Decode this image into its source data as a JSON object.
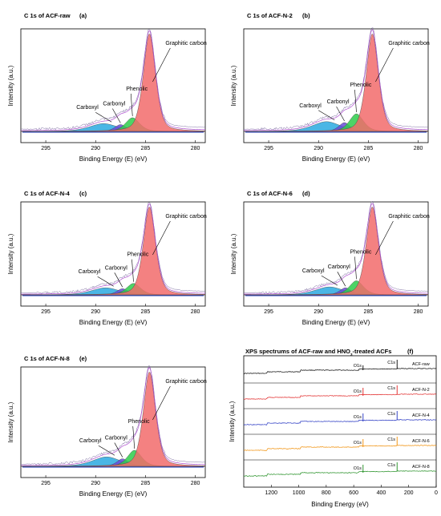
{
  "chart_data": [
    {
      "type": "area",
      "panel_id": "a",
      "title": "C 1s of ACF-raw",
      "tag": "(a)",
      "xlabel": "Binding Energy (E) (eV)",
      "ylabel": "Intensity (a.u.)",
      "xlim": [
        297.5,
        279
      ],
      "xticks": [
        "295",
        "290",
        "285",
        "280"
      ],
      "peaks": [
        {
          "name": "Graphitic carbon",
          "center": 284.6,
          "height": 1.0,
          "width": 0.65,
          "color": "#f26b6b"
        },
        {
          "name": "Phenolic",
          "center": 286.3,
          "height": 0.14,
          "width": 0.75,
          "color": "#2ecc4b"
        },
        {
          "name": "Carbonyl",
          "center": 287.5,
          "height": 0.07,
          "width": 0.6,
          "color": "#6a4bd8"
        },
        {
          "name": "Carboxyl",
          "center": 289.2,
          "height": 0.08,
          "width": 1.5,
          "color": "#2aa9e0"
        }
      ]
    },
    {
      "type": "area",
      "panel_id": "b",
      "title": "C 1s of ACF-N-2",
      "tag": "(b)",
      "xlabel": "Binding Energy (E) (eV)",
      "ylabel": "Intensity (a.u.)",
      "xlim": [
        297.5,
        279
      ],
      "xticks": [
        "295",
        "290",
        "285",
        "280"
      ],
      "peaks": [
        {
          "name": "Graphitic carbon",
          "center": 284.6,
          "height": 1.0,
          "width": 0.65,
          "color": "#f26b6b"
        },
        {
          "name": "Phenolic",
          "center": 286.2,
          "height": 0.18,
          "width": 0.75,
          "color": "#2ecc4b"
        },
        {
          "name": "Carbonyl",
          "center": 287.4,
          "height": 0.09,
          "width": 0.6,
          "color": "#6a4bd8"
        },
        {
          "name": "Carboxyl",
          "center": 289.2,
          "height": 0.1,
          "width": 1.5,
          "color": "#2aa9e0"
        }
      ]
    },
    {
      "type": "area",
      "panel_id": "c",
      "title": "C 1s of ACF-N-4",
      "tag": "(c)",
      "xlabel": "Binding Energy (E) (eV)",
      "ylabel": "Intensity (a.u.)",
      "xlim": [
        297.5,
        279
      ],
      "xticks": [
        "295",
        "290",
        "285",
        "280"
      ],
      "peaks": [
        {
          "name": "Graphitic carbon",
          "center": 284.6,
          "height": 1.0,
          "width": 0.65,
          "color": "#f26b6b"
        },
        {
          "name": "Phenolic",
          "center": 286.2,
          "height": 0.13,
          "width": 0.75,
          "color": "#2ecc4b"
        },
        {
          "name": "Carbonyl",
          "center": 287.3,
          "height": 0.07,
          "width": 0.6,
          "color": "#6a4bd8"
        },
        {
          "name": "Carboxyl",
          "center": 289.0,
          "height": 0.08,
          "width": 1.5,
          "color": "#2aa9e0"
        }
      ]
    },
    {
      "type": "area",
      "panel_id": "d",
      "title": "C 1s of ACF-N-6",
      "tag": "(d)",
      "xlabel": "Binding Energy (E) (eV)",
      "ylabel": "Intensity (a.u.)",
      "xlim": [
        297.5,
        279
      ],
      "xticks": [
        "295",
        "290",
        "285",
        "280"
      ],
      "peaks": [
        {
          "name": "Graphitic carbon",
          "center": 284.6,
          "height": 1.0,
          "width": 0.65,
          "color": "#f26b6b"
        },
        {
          "name": "Phenolic",
          "center": 286.2,
          "height": 0.16,
          "width": 0.75,
          "color": "#2ecc4b"
        },
        {
          "name": "Carbonyl",
          "center": 287.3,
          "height": 0.08,
          "width": 0.6,
          "color": "#6a4bd8"
        },
        {
          "name": "Carboxyl",
          "center": 288.9,
          "height": 0.09,
          "width": 1.5,
          "color": "#2aa9e0"
        }
      ]
    },
    {
      "type": "area",
      "panel_id": "e",
      "title": "C 1s of ACF-N-8",
      "tag": "(e)",
      "xlabel": "Binding Energy (E) (eV)",
      "ylabel": "Intensity (a.u.)",
      "xlim": [
        297.5,
        279
      ],
      "xticks": [
        "295",
        "290",
        "285",
        "280"
      ],
      "peaks": [
        {
          "name": "Graphitic carbon",
          "center": 284.6,
          "height": 1.0,
          "width": 0.65,
          "color": "#f26b6b"
        },
        {
          "name": "Phenolic",
          "center": 286.1,
          "height": 0.17,
          "width": 0.75,
          "color": "#2ecc4b"
        },
        {
          "name": "Carbonyl",
          "center": 287.3,
          "height": 0.08,
          "width": 0.6,
          "color": "#6a4bd8"
        },
        {
          "name": "Carboxyl",
          "center": 288.9,
          "height": 0.1,
          "width": 1.5,
          "color": "#2aa9e0"
        }
      ]
    },
    {
      "type": "line",
      "panel_id": "f",
      "title": "XPS spectrums of ACF-raw and HNO",
      "title_sub": "3",
      "title_rest": "-treated ACFs",
      "tag": "(f)",
      "xlabel": "Binding Energy (eV)",
      "ylabel": "Intensity (a.u.)",
      "xlim": [
        1400,
        0
      ],
      "xticks": [
        "1200",
        "1000",
        "800",
        "600",
        "400",
        "200",
        "0"
      ],
      "peak_labels": {
        "c1s": "C1s",
        "o1s": "O1s"
      },
      "series": [
        {
          "name": "ACF-raw",
          "color": "#000000"
        },
        {
          "name": "ACF-N-2",
          "color": "#e02020"
        },
        {
          "name": "ACF-N-4",
          "color": "#2030c0"
        },
        {
          "name": "ACF-N-6",
          "color": "#f08c00"
        },
        {
          "name": "ACF-N-8",
          "color": "#1a8a1a"
        }
      ]
    }
  ]
}
